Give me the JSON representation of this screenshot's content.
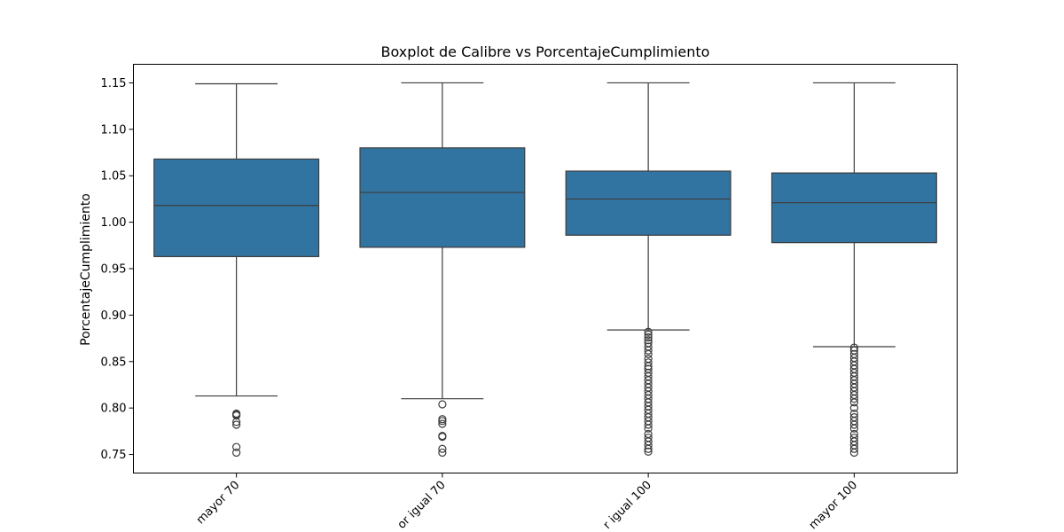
{
  "chart_data": {
    "type": "box",
    "title": "Boxplot de Calibre vs PorcentajeCumplimiento",
    "xlabel": "",
    "ylabel": "PorcentajeCumplimiento",
    "ylim": [
      0.73,
      1.17
    ],
    "yticks": [
      "0.75",
      "0.80",
      "0.85",
      "0.90",
      "0.95",
      "1.00",
      "1.05",
      "1.10",
      "1.15"
    ],
    "grid": false,
    "box_color": "#3274a1",
    "line_color": "#3d3d3d",
    "categories": [
      "mayor 70",
      "or igual 70",
      "r igual 100",
      "mayor 100"
    ],
    "boxes": [
      {
        "category": "mayor 70",
        "whislo": 0.813,
        "q1": 0.963,
        "median": 1.018,
        "q3": 1.068,
        "whishi": 1.149,
        "fliers": [
          0.794,
          0.793,
          0.792,
          0.785,
          0.782,
          0.758,
          0.752
        ]
      },
      {
        "category": "or igual 70",
        "whislo": 0.81,
        "q1": 0.973,
        "median": 1.032,
        "q3": 1.08,
        "whishi": 1.15,
        "fliers": [
          0.804,
          0.788,
          0.786,
          0.783,
          0.77,
          0.769,
          0.756,
          0.752
        ]
      },
      {
        "category": "r igual 100",
        "whislo": 0.884,
        "q1": 0.986,
        "median": 1.025,
        "q3": 1.055,
        "whishi": 1.15,
        "fliers": [
          0.882,
          0.879,
          0.876,
          0.873,
          0.87,
          0.866,
          0.862,
          0.858,
          0.853,
          0.849,
          0.845,
          0.842,
          0.838,
          0.834,
          0.83,
          0.826,
          0.822,
          0.818,
          0.814,
          0.81,
          0.806,
          0.802,
          0.798,
          0.794,
          0.79,
          0.786,
          0.782,
          0.778,
          0.772,
          0.768,
          0.764,
          0.76,
          0.756,
          0.753
        ]
      },
      {
        "category": "mayor 100",
        "whislo": 0.866,
        "q1": 0.978,
        "median": 1.021,
        "q3": 1.053,
        "whishi": 1.15,
        "fliers": [
          0.865,
          0.862,
          0.858,
          0.854,
          0.85,
          0.846,
          0.842,
          0.838,
          0.834,
          0.83,
          0.826,
          0.822,
          0.818,
          0.814,
          0.81,
          0.806,
          0.8,
          0.794,
          0.79,
          0.786,
          0.782,
          0.778,
          0.772,
          0.768,
          0.764,
          0.76,
          0.756,
          0.752
        ]
      }
    ]
  }
}
